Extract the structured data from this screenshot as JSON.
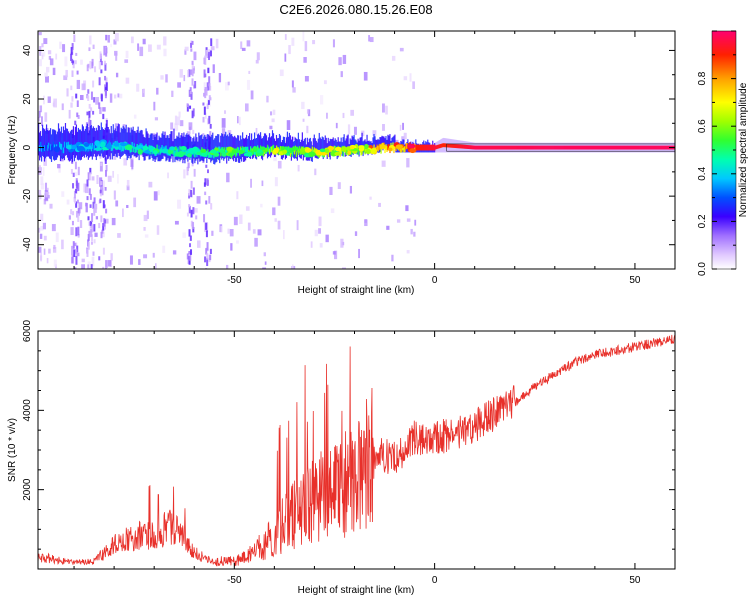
{
  "title": "C2E6.2026.080.15.26.E08",
  "chart_data": [
    {
      "type": "heatmap",
      "title": "C2E6.2026.080.15.26.E08",
      "xlabel": "Height of straight line (km)",
      "ylabel": "Frequency (Hz)",
      "xlim": [
        -99,
        60
      ],
      "ylim": [
        -50,
        48
      ],
      "x_ticks": [
        -50,
        0,
        50
      ],
      "y_ticks": [
        -40,
        -20,
        0,
        20,
        40
      ],
      "x_tick_labels": [
        "-50",
        "0",
        "50"
      ],
      "y_tick_labels": [
        "-40",
        "-20",
        "0",
        "20",
        "40"
      ],
      "grid": false,
      "colorbar": {
        "label": "Normalized spectral amplitude",
        "range": [
          0,
          1
        ],
        "ticks": [
          0.0,
          0.2,
          0.4,
          0.6,
          0.8
        ],
        "tick_labels": [
          "0.0",
          "0.2",
          "0.4",
          "0.6",
          "0.8"
        ]
      },
      "ridge": {
        "description": "dominant spectral line near 0 Hz",
        "x": [
          -99,
          -90,
          -80,
          -70,
          -60,
          -50,
          -40,
          -30,
          -20,
          -10,
          0,
          2,
          10,
          20,
          30,
          40,
          50,
          60
        ],
        "y": [
          0,
          0,
          1,
          -1,
          -2,
          -2,
          -1,
          -2,
          -1,
          0,
          0,
          1,
          0,
          0,
          0,
          0,
          0,
          0
        ],
        "amplitude": [
          0.35,
          0.35,
          0.4,
          0.45,
          0.45,
          0.55,
          0.6,
          0.6,
          0.65,
          0.85,
          0.95,
          0.9,
          0.97,
          0.97,
          0.98,
          0.98,
          0.98,
          0.98
        ],
        "band_halfwidth_hz": [
          6,
          6,
          6,
          5,
          5,
          5,
          4,
          4,
          3,
          2,
          2,
          3,
          2,
          2,
          2,
          2,
          2,
          2
        ]
      }
    },
    {
      "type": "line",
      "xlabel": "Height of straight line (km)",
      "ylabel": "SNR (10 * v/v)",
      "xlim": [
        -99,
        60
      ],
      "ylim": [
        0,
        6000
      ],
      "x_ticks": [
        -50,
        0,
        50
      ],
      "y_ticks": [
        2000,
        4000,
        6000
      ],
      "x_tick_labels": [
        "-50",
        "0",
        "50"
      ],
      "y_tick_labels": [
        "2000",
        "4000",
        "6000"
      ],
      "grid": false,
      "series": [
        {
          "name": "SNR",
          "color": "#e8302a",
          "x": [
            -99,
            -95,
            -90,
            -85,
            -80,
            -75,
            -70,
            -65,
            -60,
            -55,
            -50,
            -45,
            -40,
            -35,
            -30,
            -25,
            -20,
            -15,
            -10,
            -5,
            0,
            5,
            10,
            15,
            20,
            25,
            30,
            35,
            40,
            45,
            50,
            55,
            60
          ],
          "y": [
            300,
            250,
            150,
            200,
            600,
            800,
            900,
            1100,
            400,
            200,
            200,
            400,
            900,
            1400,
            1700,
            2000,
            2200,
            2900,
            2800,
            3300,
            3300,
            3400,
            3600,
            3900,
            4200,
            4600,
            4900,
            5200,
            5400,
            5500,
            5600,
            5700,
            5800
          ]
        }
      ]
    }
  ],
  "colors": {
    "line": "#e8302a",
    "axis": "#000000",
    "background": "#ffffff"
  }
}
